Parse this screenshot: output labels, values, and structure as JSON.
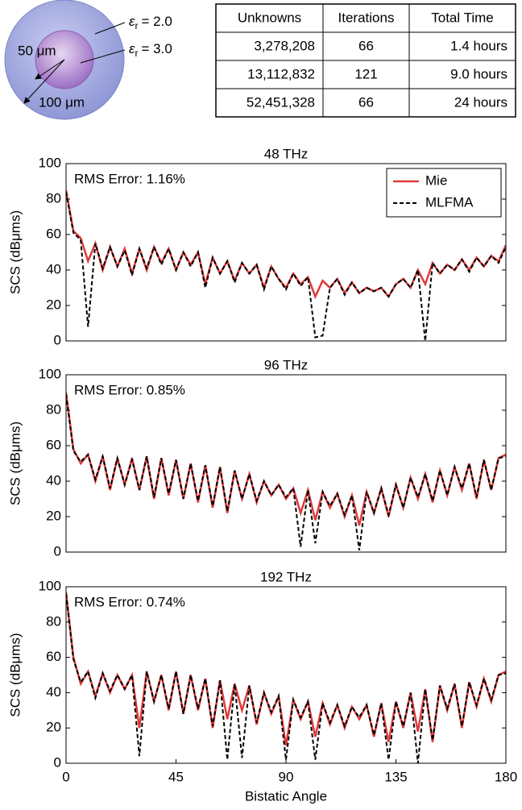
{
  "diagram": {
    "outer_label": {
      "symbol": "ε",
      "sub": "r",
      "text": "= 2.0"
    },
    "inner_label": {
      "symbol": "ε",
      "sub": "r",
      "text": "= 3.0"
    },
    "inner_radius": "50 μm",
    "outer_radius": "100 μm"
  },
  "table": {
    "header": [
      "Unknowns",
      "Iterations",
      "Total Time"
    ],
    "rows": [
      [
        "3,278,208",
        "66",
        "1.4 hours"
      ],
      [
        "13,112,832",
        "121",
        "9.0 hours"
      ],
      [
        "52,451,328",
        "66",
        "24 hours"
      ]
    ]
  },
  "chart_data": [
    {
      "type": "line",
      "title": "48 THz",
      "annotation": "RMS Error: 1.16%",
      "y_label": "SCS (dBμms)",
      "xlim": [
        0,
        180
      ],
      "ylim": [
        0,
        100
      ],
      "yticks": [
        0,
        20,
        40,
        60,
        80,
        100
      ],
      "legend": "upper right",
      "x": [
        0,
        3,
        6,
        9,
        12,
        15,
        18,
        21,
        24,
        27,
        30,
        33,
        36,
        39,
        42,
        45,
        48,
        51,
        54,
        57,
        60,
        63,
        66,
        69,
        72,
        75,
        78,
        81,
        84,
        87,
        90,
        93,
        96,
        99,
        102,
        105,
        108,
        111,
        114,
        117,
        120,
        123,
        126,
        129,
        132,
        135,
        138,
        141,
        144,
        147,
        150,
        153,
        156,
        159,
        162,
        165,
        168,
        171,
        174,
        177,
        180
      ],
      "series": [
        {
          "name": "Mie",
          "color": "#e03a3a",
          "dash": false,
          "values": [
            85,
            62,
            58,
            45,
            55,
            40,
            53,
            42,
            52,
            38,
            52,
            40,
            53,
            44,
            52,
            40,
            50,
            43,
            50,
            32,
            47,
            38,
            45,
            34,
            44,
            38,
            43,
            30,
            42,
            35,
            30,
            38,
            32,
            36,
            25,
            34,
            30,
            35,
            27,
            33,
            27,
            30,
            28,
            30,
            25,
            32,
            35,
            30,
            40,
            32,
            44,
            38,
            43,
            40,
            46,
            40,
            47,
            42,
            48,
            45,
            54
          ]
        },
        {
          "name": "MLFMA",
          "color": "#000000",
          "dash": true,
          "values": [
            84,
            61,
            57,
            8,
            55,
            41,
            53,
            42,
            51,
            37,
            52,
            41,
            53,
            43,
            52,
            40,
            50,
            42,
            50,
            30,
            47,
            38,
            45,
            33,
            44,
            38,
            43,
            29,
            42,
            35,
            29,
            38,
            31,
            36,
            2,
            3,
            30,
            35,
            26,
            33,
            27,
            30,
            28,
            30,
            25,
            32,
            35,
            30,
            40,
            0,
            44,
            38,
            43,
            40,
            46,
            39,
            47,
            42,
            48,
            44,
            53
          ]
        }
      ]
    },
    {
      "type": "line",
      "title": "96 THz",
      "annotation": "RMS Error: 0.85%",
      "y_label": "SCS (dBμms)",
      "xlim": [
        0,
        180
      ],
      "ylim": [
        0,
        100
      ],
      "yticks": [
        0,
        20,
        40,
        60,
        80,
        100
      ],
      "x": [
        0,
        3,
        6,
        9,
        12,
        15,
        18,
        21,
        24,
        27,
        30,
        33,
        36,
        39,
        42,
        45,
        48,
        51,
        54,
        57,
        60,
        63,
        66,
        69,
        72,
        75,
        78,
        81,
        84,
        87,
        90,
        93,
        96,
        99,
        102,
        105,
        108,
        111,
        114,
        117,
        120,
        123,
        126,
        129,
        132,
        135,
        138,
        141,
        144,
        147,
        150,
        153,
        156,
        159,
        162,
        165,
        168,
        171,
        174,
        177,
        180
      ],
      "series": [
        {
          "color": "#e03a3a",
          "dash": false,
          "values": [
            90,
            58,
            50,
            55,
            40,
            54,
            35,
            53,
            38,
            53,
            35,
            54,
            30,
            53,
            32,
            52,
            30,
            50,
            28,
            49,
            25,
            48,
            22,
            46,
            30,
            44,
            28,
            40,
            32,
            38,
            30,
            36,
            22,
            35,
            18,
            34,
            25,
            33,
            20,
            32,
            15,
            34,
            22,
            36,
            20,
            38,
            25,
            42,
            30,
            44,
            28,
            46,
            32,
            48,
            35,
            50,
            30,
            52,
            35,
            53,
            55
          ]
        },
        {
          "color": "#000000",
          "dash": true,
          "values": [
            89,
            57,
            51,
            55,
            41,
            54,
            36,
            53,
            38,
            52,
            35,
            54,
            31,
            53,
            33,
            52,
            30,
            50,
            29,
            49,
            26,
            48,
            23,
            46,
            30,
            44,
            29,
            40,
            32,
            38,
            31,
            36,
            3,
            35,
            5,
            34,
            26,
            33,
            21,
            32,
            1,
            34,
            22,
            36,
            21,
            38,
            25,
            42,
            31,
            44,
            29,
            46,
            32,
            48,
            36,
            50,
            31,
            52,
            35,
            53,
            54
          ]
        }
      ]
    },
    {
      "type": "line",
      "title": "192 THz",
      "annotation": "RMS Error: 0.74%",
      "y_label": "SCS (dBμms)",
      "x_label": "Bistatic Angle",
      "xlim": [
        0,
        180
      ],
      "xticks": [
        0,
        45,
        90,
        135,
        180
      ],
      "ylim": [
        0,
        100
      ],
      "yticks": [
        0,
        20,
        40,
        60,
        80,
        100
      ],
      "x": [
        0,
        3,
        6,
        9,
        12,
        15,
        18,
        21,
        24,
        27,
        30,
        33,
        36,
        39,
        42,
        45,
        48,
        51,
        54,
        57,
        60,
        63,
        66,
        69,
        72,
        75,
        78,
        81,
        84,
        87,
        90,
        93,
        96,
        99,
        102,
        105,
        108,
        111,
        114,
        117,
        120,
        123,
        126,
        129,
        132,
        135,
        138,
        141,
        144,
        147,
        150,
        153,
        156,
        159,
        162,
        165,
        168,
        171,
        174,
        177,
        180
      ],
      "series": [
        {
          "color": "#e03a3a",
          "dash": false,
          "values": [
            97,
            60,
            45,
            52,
            38,
            51,
            40,
            50,
            42,
            50,
            20,
            52,
            35,
            50,
            30,
            52,
            28,
            50,
            30,
            48,
            20,
            47,
            25,
            45,
            30,
            44,
            22,
            40,
            28,
            38,
            10,
            36,
            25,
            35,
            15,
            34,
            22,
            33,
            20,
            32,
            25,
            33,
            15,
            34,
            12,
            35,
            20,
            40,
            18,
            42,
            12,
            44,
            30,
            45,
            20,
            46,
            32,
            48,
            35,
            50,
            52
          ]
        },
        {
          "color": "#000000",
          "dash": true,
          "values": [
            96,
            59,
            46,
            52,
            37,
            51,
            41,
            50,
            42,
            50,
            4,
            52,
            35,
            50,
            31,
            52,
            28,
            50,
            31,
            48,
            21,
            47,
            2,
            45,
            3,
            44,
            23,
            40,
            29,
            38,
            2,
            36,
            26,
            35,
            2,
            34,
            23,
            33,
            21,
            32,
            26,
            33,
            16,
            34,
            2,
            35,
            21,
            40,
            0,
            42,
            13,
            44,
            31,
            45,
            21,
            46,
            33,
            48,
            36,
            50,
            51
          ]
        }
      ]
    }
  ]
}
